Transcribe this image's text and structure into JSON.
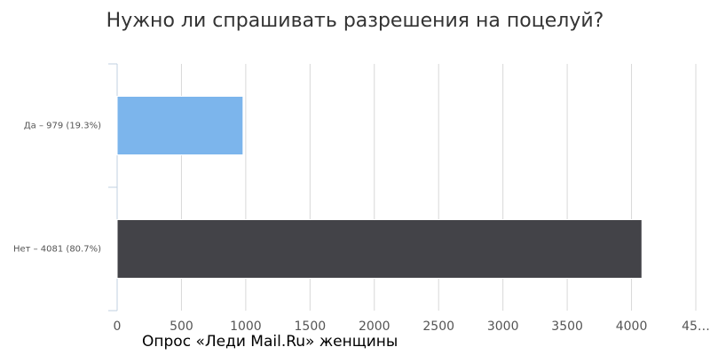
{
  "chart_data": {
    "type": "hbar",
    "title": "Нужно ли спрашивать разрешения на поцелуй?",
    "categories": [
      "Да – 979 (19.3%)",
      "Нет – 4081 (80.7%)"
    ],
    "values": [
      979,
      4081
    ],
    "colors": [
      "#7cb5ec",
      "#434348"
    ],
    "xlim": [
      0,
      4500
    ],
    "xticks": [
      0,
      500,
      1000,
      1500,
      2000,
      2500,
      3000,
      3500,
      4000,
      {
        "value": 4500,
        "label": "45…"
      }
    ],
    "grid": true,
    "annotation": "Опрос «Леди Mail.Ru» женщины"
  }
}
